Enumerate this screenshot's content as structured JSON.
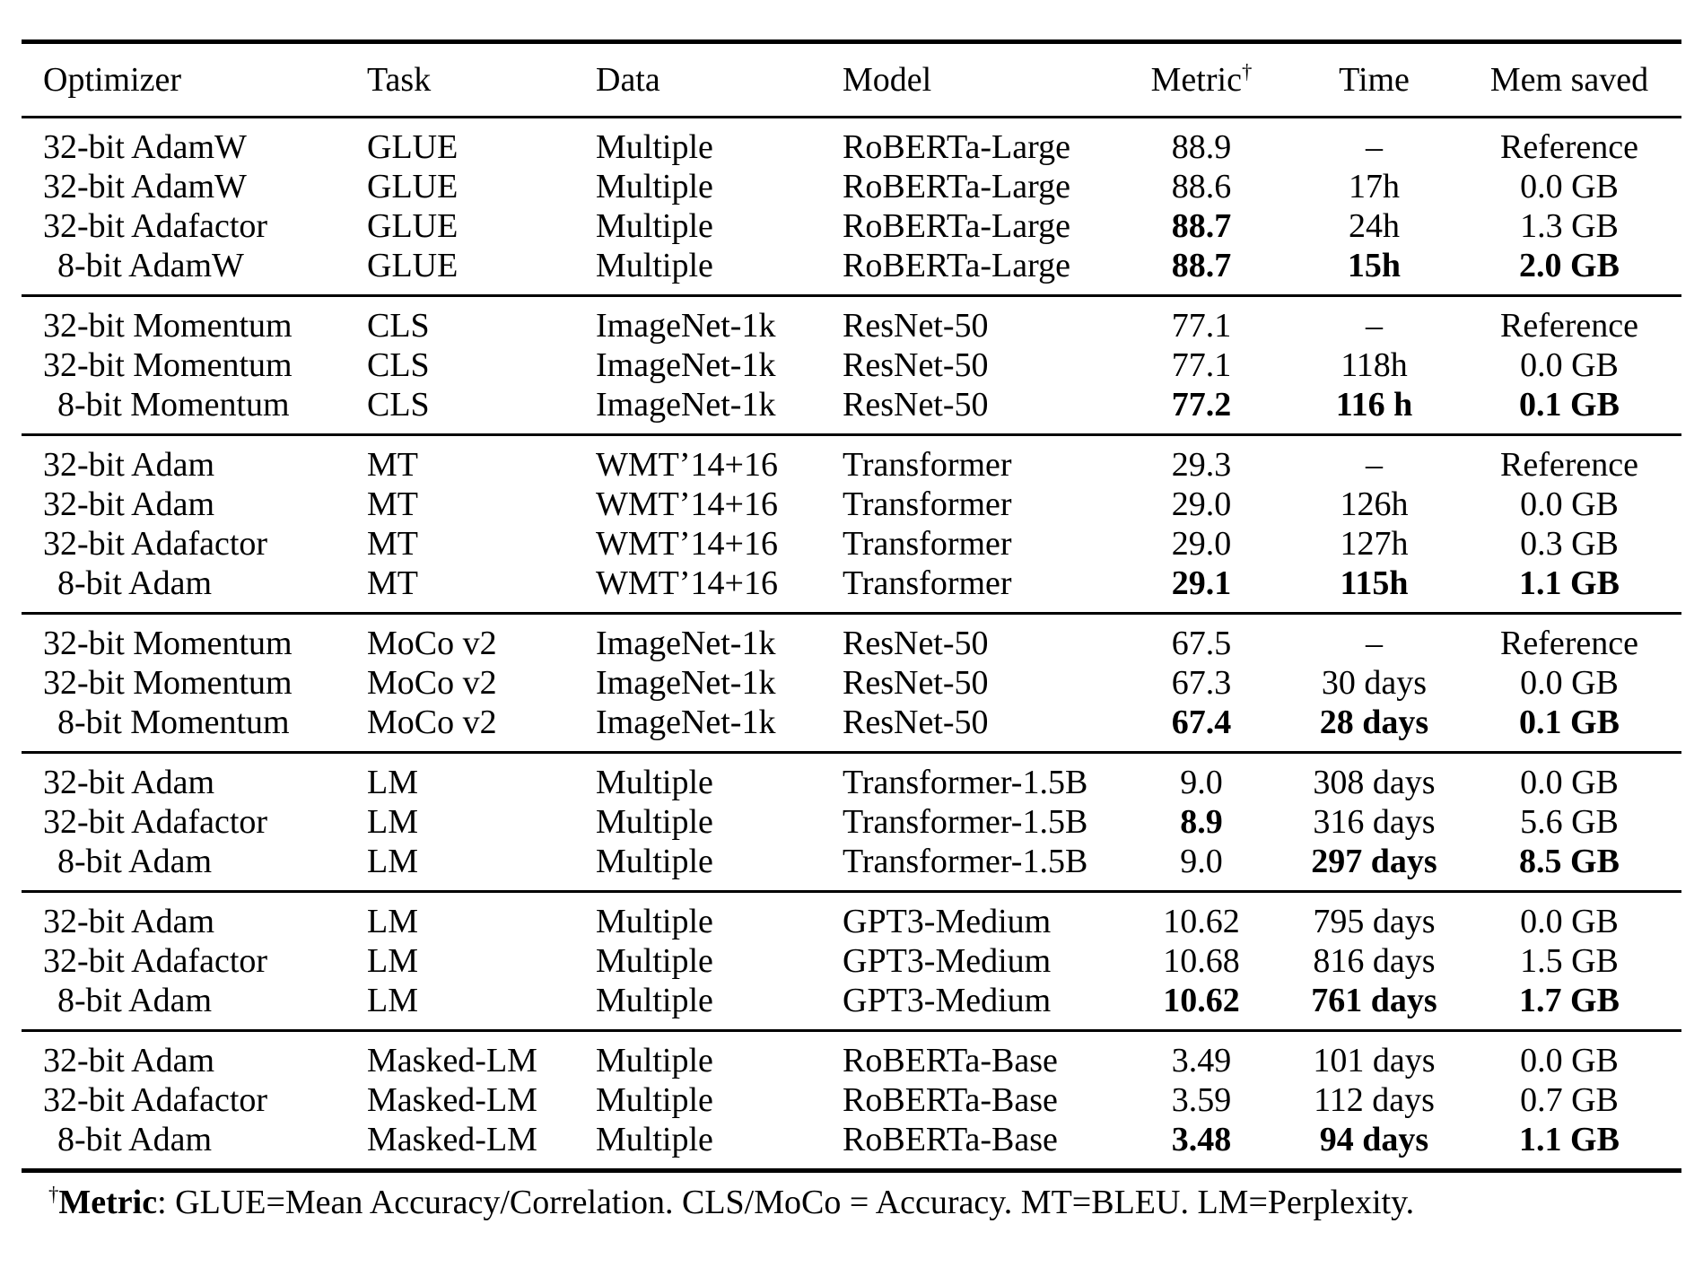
{
  "page": {
    "background_color": "#ffffff",
    "text_color": "#000000"
  },
  "table": {
    "columns": [
      "Optimizer",
      "Task",
      "Data",
      "Model",
      "Metric",
      "Time",
      "Mem saved"
    ],
    "metric_dagger": "†",
    "groups": [
      [
        {
          "optimizer": "32-bit AdamW",
          "task": "GLUE",
          "data": "Multiple",
          "model": "RoBERTa-Large",
          "metric": "88.9",
          "time": "–",
          "mem": "Reference",
          "bold": []
        },
        {
          "optimizer": "32-bit AdamW",
          "task": "GLUE",
          "data": "Multiple",
          "model": "RoBERTa-Large",
          "metric": "88.6",
          "time": "17h",
          "mem": "0.0 GB",
          "bold": []
        },
        {
          "optimizer": "32-bit Adafactor",
          "task": "GLUE",
          "data": "Multiple",
          "model": "RoBERTa-Large",
          "metric": "88.7",
          "time": "24h",
          "mem": "1.3 GB",
          "bold": [
            "metric"
          ]
        },
        {
          "optimizer": "8-bit AdamW",
          "task": "GLUE",
          "data": "Multiple",
          "model": "RoBERTa-Large",
          "metric": "88.7",
          "time": "15h",
          "mem": "2.0 GB",
          "bold": [
            "metric",
            "time",
            "mem"
          ]
        }
      ],
      [
        {
          "optimizer": "32-bit Momentum",
          "task": "CLS",
          "data": "ImageNet-1k",
          "model": "ResNet-50",
          "metric": "77.1",
          "time": "–",
          "mem": "Reference",
          "bold": []
        },
        {
          "optimizer": "32-bit Momentum",
          "task": "CLS",
          "data": "ImageNet-1k",
          "model": "ResNet-50",
          "metric": "77.1",
          "time": "118h",
          "mem": "0.0 GB",
          "bold": []
        },
        {
          "optimizer": "8-bit Momentum",
          "task": "CLS",
          "data": "ImageNet-1k",
          "model": "ResNet-50",
          "metric": "77.2",
          "time": "116 h",
          "mem": "0.1 GB",
          "bold": [
            "metric",
            "time",
            "mem"
          ]
        }
      ],
      [
        {
          "optimizer": "32-bit Adam",
          "task": "MT",
          "data": "WMT’14+16",
          "model": "Transformer",
          "metric": "29.3",
          "time": "–",
          "mem": "Reference",
          "bold": []
        },
        {
          "optimizer": "32-bit Adam",
          "task": "MT",
          "data": "WMT’14+16",
          "model": "Transformer",
          "metric": "29.0",
          "time": "126h",
          "mem": "0.0 GB",
          "bold": []
        },
        {
          "optimizer": "32-bit Adafactor",
          "task": "MT",
          "data": "WMT’14+16",
          "model": "Transformer",
          "metric": "29.0",
          "time": "127h",
          "mem": "0.3 GB",
          "bold": []
        },
        {
          "optimizer": "8-bit Adam",
          "task": "MT",
          "data": "WMT’14+16",
          "model": "Transformer",
          "metric": "29.1",
          "time": "115h",
          "mem": "1.1 GB",
          "bold": [
            "metric",
            "time",
            "mem"
          ]
        }
      ],
      [
        {
          "optimizer": "32-bit Momentum",
          "task": "MoCo v2",
          "data": "ImageNet-1k",
          "model": "ResNet-50",
          "metric": "67.5",
          "time": "–",
          "mem": "Reference",
          "bold": []
        },
        {
          "optimizer": "32-bit Momentum",
          "task": "MoCo v2",
          "data": "ImageNet-1k",
          "model": "ResNet-50",
          "metric": "67.3",
          "time": "30 days",
          "mem": "0.0 GB",
          "bold": []
        },
        {
          "optimizer": "8-bit Momentum",
          "task": "MoCo v2",
          "data": "ImageNet-1k",
          "model": "ResNet-50",
          "metric": "67.4",
          "time": "28 days",
          "mem": "0.1 GB",
          "bold": [
            "metric",
            "time",
            "mem"
          ]
        }
      ],
      [
        {
          "optimizer": "32-bit Adam",
          "task": "LM",
          "data": "Multiple",
          "model": "Transformer-1.5B",
          "metric": "9.0",
          "time": "308 days",
          "mem": "0.0 GB",
          "bold": []
        },
        {
          "optimizer": "32-bit Adafactor",
          "task": "LM",
          "data": "Multiple",
          "model": "Transformer-1.5B",
          "metric": "8.9",
          "time": "316 days",
          "mem": "5.6 GB",
          "bold": [
            "metric"
          ]
        },
        {
          "optimizer": "8-bit Adam",
          "task": "LM",
          "data": "Multiple",
          "model": "Transformer-1.5B",
          "metric": "9.0",
          "time": "297 days",
          "mem": "8.5 GB",
          "bold": [
            "time",
            "mem"
          ]
        }
      ],
      [
        {
          "optimizer": "32-bit Adam",
          "task": "LM",
          "data": "Multiple",
          "model": "GPT3-Medium",
          "metric": "10.62",
          "time": "795 days",
          "mem": "0.0 GB",
          "bold": []
        },
        {
          "optimizer": "32-bit Adafactor",
          "task": "LM",
          "data": "Multiple",
          "model": "GPT3-Medium",
          "metric": "10.68",
          "time": "816 days",
          "mem": "1.5 GB",
          "bold": []
        },
        {
          "optimizer": "8-bit Adam",
          "task": "LM",
          "data": "Multiple",
          "model": "GPT3-Medium",
          "metric": "10.62",
          "time": "761 days",
          "mem": "1.7 GB",
          "bold": [
            "metric",
            "time",
            "mem"
          ]
        }
      ],
      [
        {
          "optimizer": "32-bit Adam",
          "task": "Masked-LM",
          "data": "Multiple",
          "model": "RoBERTa-Base",
          "metric": "3.49",
          "time": "101 days",
          "mem": "0.0 GB",
          "bold": []
        },
        {
          "optimizer": "32-bit Adafactor",
          "task": "Masked-LM",
          "data": "Multiple",
          "model": "RoBERTa-Base",
          "metric": "3.59",
          "time": "112 days",
          "mem": "0.7 GB",
          "bold": []
        },
        {
          "optimizer": "8-bit Adam",
          "task": "Masked-LM",
          "data": "Multiple",
          "model": "RoBERTa-Base",
          "metric": "3.48",
          "time": "94 days",
          "mem": "1.1 GB",
          "bold": [
            "metric",
            "time",
            "mem"
          ]
        }
      ]
    ]
  },
  "footnote": {
    "dagger": "†",
    "label": "Metric",
    "text": ": GLUE=Mean Accuracy/Correlation. CLS/MoCo = Accuracy. MT=BLEU. LM=Perplexity."
  }
}
